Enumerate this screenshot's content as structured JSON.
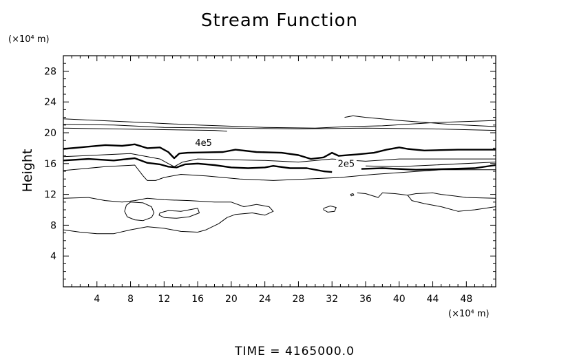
{
  "chart_data": {
    "type": "contour",
    "title": "Stream Function",
    "xlabel": "",
    "ylabel": "Height",
    "x_unit": "(×10⁴ m)",
    "y_unit": "(×10⁴ m)",
    "footer": "TIME = 4165000.0",
    "xlim": [
      0,
      51.5
    ],
    "ylim": [
      0,
      30
    ],
    "xticks": [
      4,
      8,
      12,
      16,
      20,
      24,
      28,
      32,
      36,
      40,
      44,
      48
    ],
    "yticks": [
      4,
      8,
      12,
      16,
      20,
      24,
      28
    ],
    "grid": false,
    "contour_labels": [
      {
        "text": "4e5",
        "x": 16.7,
        "y": 18.3
      },
      {
        "text": "2e5",
        "x": 33.7,
        "y": 15.6
      }
    ],
    "contours": [
      {
        "id": "c-top-1",
        "bold": false,
        "points": [
          [
            0,
            21.8
          ],
          [
            8,
            21.4
          ],
          [
            16,
            21.0
          ],
          [
            24,
            20.7
          ],
          [
            30,
            20.6
          ],
          [
            34,
            20.8
          ],
          [
            38,
            20.9
          ],
          [
            44,
            21.3
          ],
          [
            51.5,
            21.6
          ]
        ]
      },
      {
        "id": "c-top-2",
        "bold": false,
        "points": [
          [
            0,
            21.1
          ],
          [
            6,
            21.0
          ],
          [
            12,
            20.7
          ],
          [
            20,
            20.6
          ],
          [
            28,
            20.5
          ],
          [
            36,
            20.6
          ],
          [
            44,
            20.5
          ],
          [
            51.5,
            20.3
          ]
        ]
      },
      {
        "id": "c-top-3",
        "bold": false,
        "points": [
          [
            0,
            20.6
          ],
          [
            6,
            20.5
          ],
          [
            12,
            20.4
          ],
          [
            18,
            20.3
          ],
          [
            19.5,
            20.2
          ]
        ]
      },
      {
        "id": "c-top-4",
        "bold": false,
        "points": [
          [
            33.5,
            22.0
          ],
          [
            34.5,
            22.2
          ],
          [
            36,
            22.0
          ],
          [
            40,
            21.6
          ],
          [
            46,
            21.1
          ],
          [
            51.5,
            20.8
          ]
        ]
      },
      {
        "id": "c-4e5",
        "bold": true,
        "points": [
          [
            0,
            17.9
          ],
          [
            2,
            18.1
          ],
          [
            5,
            18.4
          ],
          [
            7,
            18.3
          ],
          [
            8.5,
            18.5
          ],
          [
            10,
            18.0
          ],
          [
            11.5,
            18.1
          ],
          [
            12.5,
            17.5
          ],
          [
            13.2,
            16.7
          ],
          [
            13.8,
            17.3
          ],
          [
            14.8,
            17.4
          ],
          [
            19,
            17.5
          ],
          [
            20.5,
            17.8
          ],
          [
            23,
            17.5
          ],
          [
            26,
            17.4
          ],
          [
            28,
            17.1
          ],
          [
            29.5,
            16.6
          ],
          [
            31,
            16.8
          ],
          [
            32,
            17.4
          ],
          [
            32.8,
            17.0
          ],
          [
            35,
            17.2
          ],
          [
            37,
            17.4
          ],
          [
            38.5,
            17.8
          ],
          [
            40,
            18.1
          ],
          [
            41,
            17.9
          ],
          [
            43,
            17.7
          ],
          [
            47,
            17.8
          ],
          [
            51.5,
            17.8
          ]
        ]
      },
      {
        "id": "c-mid-1",
        "bold": false,
        "points": [
          [
            0,
            16.9
          ],
          [
            4,
            17.1
          ],
          [
            8,
            17.3
          ],
          [
            10,
            16.9
          ],
          [
            11.5,
            16.6
          ],
          [
            12.5,
            16.0
          ],
          [
            13.2,
            15.6
          ],
          [
            14.2,
            16.2
          ],
          [
            16,
            16.6
          ],
          [
            20,
            16.5
          ],
          [
            24,
            16.4
          ],
          [
            28,
            16.2
          ],
          [
            32,
            16.6
          ],
          [
            36,
            16.3
          ],
          [
            40,
            16.6
          ],
          [
            44,
            16.6
          ],
          [
            51.5,
            16.6
          ]
        ]
      },
      {
        "id": "c-2e5",
        "bold": true,
        "points": [
          [
            0,
            16.4
          ],
          [
            3,
            16.6
          ],
          [
            6,
            16.4
          ],
          [
            8.5,
            16.7
          ],
          [
            10,
            16.1
          ],
          [
            11.5,
            15.9
          ],
          [
            12.5,
            15.6
          ],
          [
            13.5,
            15.5
          ],
          [
            14.5,
            15.9
          ],
          [
            16,
            16.0
          ],
          [
            18,
            15.8
          ],
          [
            20,
            15.5
          ],
          [
            22,
            15.4
          ],
          [
            24,
            15.5
          ],
          [
            25,
            15.7
          ],
          [
            27,
            15.4
          ],
          [
            29,
            15.4
          ],
          [
            31,
            15.0
          ],
          [
            32,
            14.9
          ]
        ]
      },
      {
        "id": "c-2e5-b",
        "bold": true,
        "points": [
          [
            35.5,
            15.3
          ],
          [
            38,
            15.4
          ],
          [
            42,
            15.2
          ],
          [
            46,
            15.3
          ],
          [
            49,
            15.4
          ],
          [
            51.5,
            15.8
          ]
        ]
      },
      {
        "id": "c-mid-2",
        "bold": false,
        "points": [
          [
            0,
            15.1
          ],
          [
            5,
            15.6
          ],
          [
            8.5,
            15.8
          ],
          [
            9.5,
            14.4
          ],
          [
            10,
            13.8
          ],
          [
            11,
            13.8
          ],
          [
            12,
            14.2
          ],
          [
            14,
            14.6
          ],
          [
            17,
            14.4
          ],
          [
            21,
            14.0
          ],
          [
            25,
            13.8
          ],
          [
            29,
            14.0
          ],
          [
            33,
            14.2
          ],
          [
            37,
            14.6
          ],
          [
            41,
            14.9
          ],
          [
            45,
            15.2
          ],
          [
            51.5,
            15.2
          ]
        ]
      },
      {
        "id": "c-mid-3",
        "bold": false,
        "points": [
          [
            36,
            15.7
          ],
          [
            40,
            15.6
          ],
          [
            44,
            15.8
          ],
          [
            51.5,
            16.2
          ]
        ]
      },
      {
        "id": "c-low-1",
        "bold": false,
        "points": [
          [
            0,
            11.5
          ],
          [
            3,
            11.6
          ],
          [
            5,
            11.2
          ],
          [
            7,
            11.0
          ],
          [
            8.5,
            11.2
          ],
          [
            10,
            11.5
          ],
          [
            12,
            11.3
          ],
          [
            15,
            11.2
          ],
          [
            18,
            11.0
          ],
          [
            20,
            11.0
          ],
          [
            21.5,
            10.4
          ],
          [
            23,
            10.7
          ],
          [
            24.5,
            10.4
          ],
          [
            25,
            9.8
          ],
          [
            24,
            9.3
          ],
          [
            22.5,
            9.6
          ],
          [
            20.5,
            9.4
          ],
          [
            19.5,
            9.0
          ],
          [
            18.5,
            8.2
          ],
          [
            17,
            7.4
          ],
          [
            16,
            7.1
          ],
          [
            14,
            7.2
          ],
          [
            12,
            7.6
          ],
          [
            10,
            7.8
          ],
          [
            8,
            7.4
          ],
          [
            6,
            6.9
          ],
          [
            4,
            6.9
          ],
          [
            2,
            7.1
          ],
          [
            0,
            7.4
          ]
        ]
      },
      {
        "id": "c-blob-1",
        "bold": false,
        "points": [
          [
            7.5,
            10.6
          ],
          [
            8,
            11.0
          ],
          [
            9.5,
            10.9
          ],
          [
            10.5,
            10.4
          ],
          [
            10.8,
            9.6
          ],
          [
            10.5,
            9.0
          ],
          [
            9.5,
            8.6
          ],
          [
            8.5,
            8.7
          ],
          [
            7.6,
            9.1
          ],
          [
            7.3,
            9.8
          ],
          [
            7.5,
            10.6
          ]
        ]
      },
      {
        "id": "c-blob-2",
        "bold": false,
        "points": [
          [
            11.5,
            9.6
          ],
          [
            12.5,
            9.9
          ],
          [
            14,
            9.8
          ],
          [
            15,
            10.0
          ],
          [
            16,
            10.2
          ],
          [
            16.2,
            9.6
          ],
          [
            15,
            9.1
          ],
          [
            13.5,
            8.9
          ],
          [
            12,
            9.0
          ],
          [
            11.4,
            9.3
          ],
          [
            11.5,
            9.6
          ]
        ]
      },
      {
        "id": "c-blob-3",
        "bold": false,
        "points": [
          [
            31,
            10.2
          ],
          [
            31.8,
            10.5
          ],
          [
            32.5,
            10.3
          ],
          [
            32.3,
            9.8
          ],
          [
            31.5,
            9.7
          ],
          [
            31,
            10.0
          ],
          [
            31,
            10.2
          ]
        ]
      },
      {
        "id": "c-blob-4",
        "bold": false,
        "points": [
          [
            34.2,
            12.0
          ],
          [
            34.5,
            12.1
          ],
          [
            34.6,
            11.9
          ],
          [
            34.3,
            11.8
          ],
          [
            34.2,
            12.0
          ]
        ]
      },
      {
        "id": "c-low-2",
        "bold": false,
        "points": [
          [
            35,
            12.2
          ],
          [
            36,
            12.1
          ],
          [
            37.5,
            11.6
          ],
          [
            38,
            12.2
          ],
          [
            39.5,
            12.1
          ],
          [
            41,
            11.9
          ],
          [
            42,
            12.1
          ],
          [
            44,
            12.2
          ],
          [
            45,
            12.0
          ],
          [
            46.5,
            11.8
          ],
          [
            48,
            11.6
          ],
          [
            51.5,
            11.5
          ]
        ]
      },
      {
        "id": "c-low-3",
        "bold": false,
        "points": [
          [
            41,
            11.9
          ],
          [
            41.5,
            11.2
          ],
          [
            43,
            10.8
          ],
          [
            45,
            10.4
          ],
          [
            47,
            9.8
          ],
          [
            49,
            10.0
          ],
          [
            51.5,
            10.4
          ]
        ]
      }
    ]
  }
}
